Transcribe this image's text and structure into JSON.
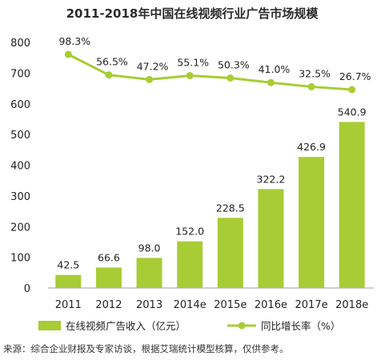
{
  "colors": {
    "bar": "#A8CC35",
    "line": "#A8CC35",
    "axis": "#999999",
    "text": "#222222"
  },
  "chart_data": {
    "type": "bar",
    "title": "2011-2018年中国在线视频行业广告市场规模",
    "categories": [
      "2011",
      "2012",
      "2013",
      "2014e",
      "2015e",
      "2016e",
      "2017e",
      "2018e"
    ],
    "ylim": [
      0,
      800
    ],
    "yticks": [
      "0",
      "100",
      "200",
      "300",
      "400",
      "500",
      "600",
      "700",
      "800"
    ],
    "grid": false,
    "legend_position": "bottom",
    "series": [
      {
        "name": "在线视频广告收入（亿元）",
        "type": "bar",
        "values": [
          42.5,
          66.6,
          98.0,
          152.0,
          228.5,
          322.2,
          426.9,
          540.9
        ],
        "labels": [
          "42.5",
          "66.6",
          "98.0",
          "152.0",
          "228.5",
          "322.2",
          "426.9",
          "540.9"
        ]
      },
      {
        "name": "同比增长率（%）",
        "type": "line",
        "values": [
          98.3,
          56.5,
          47.2,
          55.1,
          50.3,
          41.0,
          32.5,
          26.7
        ],
        "labels": [
          "98.3%",
          "56.5%",
          "47.2%",
          "55.1%",
          "50.3%",
          "41.0%",
          "32.5%",
          "26.7%"
        ]
      }
    ]
  },
  "footer": {
    "source": "来源：综合企业财报及专家访谈，根据艾瑞统计模型核算，仅供参考。"
  }
}
